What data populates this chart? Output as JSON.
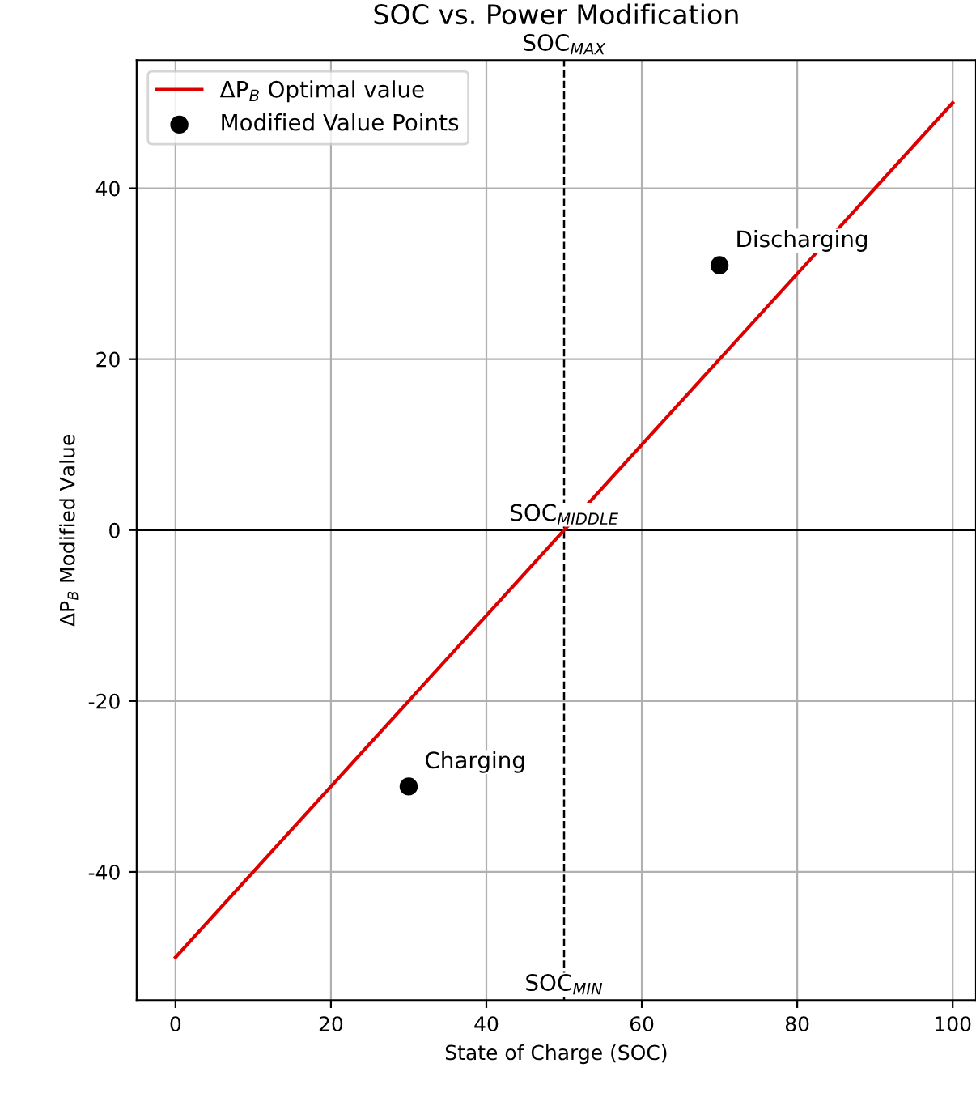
{
  "chart_data": {
    "type": "line",
    "title": "SOC vs. Power Modification",
    "xlabel": "State of Charge (SOC)",
    "ylabel": "ΔP$_{B}$ Modified Value",
    "xlim": [
      -5,
      103
    ],
    "ylim": [
      -55,
      55
    ],
    "xticks": [
      0,
      20,
      40,
      60,
      80,
      100
    ],
    "yticks": [
      -40,
      -20,
      0,
      20,
      40
    ],
    "grid": true,
    "legend": "top left",
    "series": [
      {
        "name": "ΔP$_{B}$ Optimal value",
        "color": "#dd0000",
        "x": [
          0,
          100
        ],
        "values": [
          -50,
          50
        ],
        "marker": "none",
        "line_style": "solid"
      },
      {
        "name": "Modified Value Points",
        "type": "scatter",
        "color": "#000000",
        "x": [
          30,
          70
        ],
        "values": [
          -30,
          31
        ],
        "marker": "circle"
      }
    ],
    "ref_lines": [
      {
        "axis": "x",
        "value": 50,
        "color": "#000000",
        "line_style": "dashed"
      },
      {
        "axis": "y",
        "value": 0,
        "color": "#000000",
        "line_style": "solid"
      }
    ],
    "annotations": [
      {
        "text": "SOC$_{MAX}$",
        "x": 50,
        "y": 55
      },
      {
        "text": "SOC$_{MIDDLE}$",
        "x": 50,
        "y": 0
      },
      {
        "text": "SOC$_{MIN}$",
        "x": 50,
        "y": -55
      },
      {
        "text": "Discharging",
        "x": 70,
        "y": 31
      },
      {
        "text": "Charging",
        "x": 30,
        "y": -30
      }
    ]
  }
}
